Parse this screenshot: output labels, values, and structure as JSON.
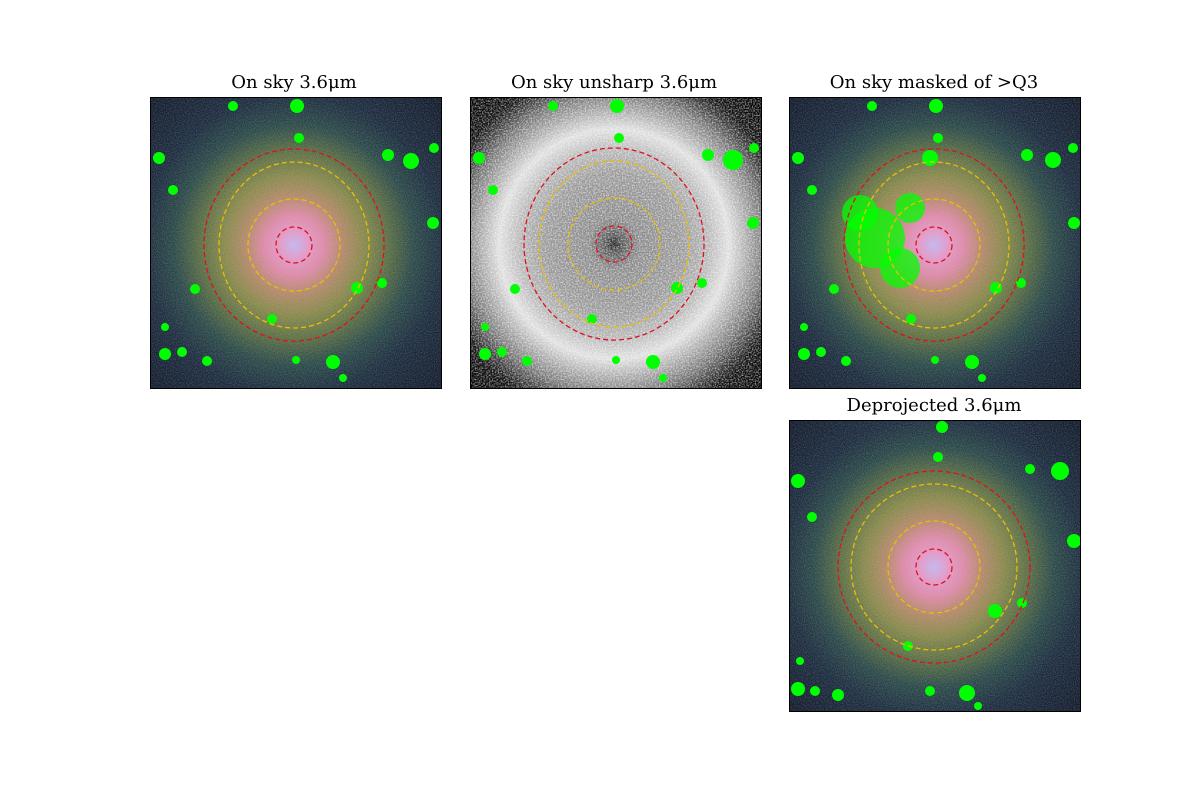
{
  "panels": [
    {
      "title": "On sky 3.6μm",
      "type": "image"
    },
    {
      "title": "On sky unsharp 3.6μm",
      "type": "image"
    },
    {
      "title": "On sky masked of >Q3",
      "type": "image"
    },
    {
      "title": "Deprojected 3.6μm",
      "type": "image"
    }
  ],
  "colors": {
    "mask": "#00ff00",
    "outer_ring": "#e01020",
    "inner_ring": "#e8c000"
  }
}
